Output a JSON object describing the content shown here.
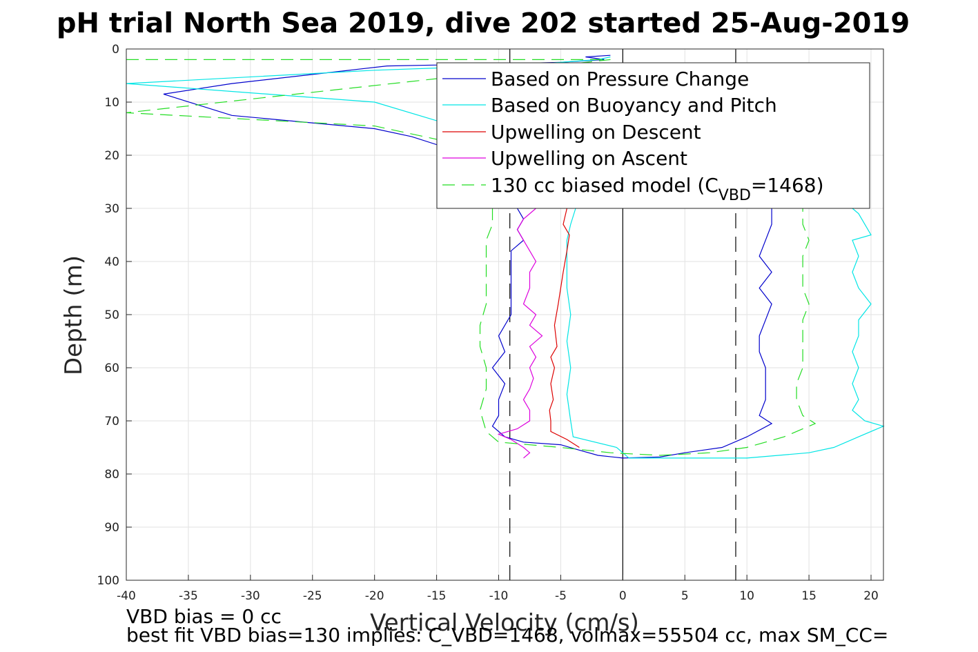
{
  "chart_data": {
    "type": "line",
    "title": "pH trial North Sea 2019, dive 202 started 25-Aug-2019",
    "xlabel": "Vertical Velocity (cm/s)",
    "ylabel": "Depth (m)",
    "xlim": [
      -40,
      21
    ],
    "ylim": [
      0,
      100
    ],
    "y_reversed": true,
    "grid": true,
    "xticks": [
      -40,
      -35,
      -30,
      -25,
      -20,
      -15,
      -10,
      -5,
      0,
      5,
      10,
      15,
      20
    ],
    "yticks": [
      0,
      10,
      20,
      30,
      40,
      50,
      60,
      70,
      80,
      90,
      100
    ],
    "vertical_lines": [
      {
        "x": -9.1,
        "style": "dashed",
        "color": "#000000"
      },
      {
        "x": 0,
        "style": "solid",
        "color": "#000000"
      },
      {
        "x": 9.1,
        "style": "dashed",
        "color": "#000000"
      }
    ],
    "legend_position": "top-right",
    "legend": [
      {
        "label": "Based on Pressure Change",
        "color": "#0000cc",
        "dash": "solid",
        "series": "pressure"
      },
      {
        "label": "Based on Buoyancy and Pitch",
        "color": "#00e5e5",
        "dash": "solid",
        "series": "buoyancy"
      },
      {
        "label": "Upwelling on Descent",
        "color": "#dd0000",
        "dash": "solid",
        "series": "upwell_desc"
      },
      {
        "label": "Upwelling on Ascent",
        "color": "#dd00dd",
        "dash": "solid",
        "series": "upwell_asc"
      },
      {
        "label_prefix": "130 cc biased model (C",
        "label_sub": "VBD",
        "label_suffix": "=1468)",
        "color": "#22dd22",
        "dash": "dashed",
        "series": "model"
      }
    ],
    "series": [
      {
        "key": "pressure",
        "color": "#0000cc",
        "dash": "solid",
        "points": [
          [
            -1,
            1.2
          ],
          [
            -3,
            1.5
          ],
          [
            -1.5,
            2
          ],
          [
            -5,
            2.5
          ],
          [
            -10,
            2.8
          ],
          [
            -19,
            3.2
          ],
          [
            -31.5,
            6.5
          ],
          [
            -37,
            8.5
          ],
          [
            -31.5,
            12.5
          ],
          [
            -20,
            15
          ],
          [
            -17,
            16.5
          ],
          [
            -15,
            18
          ],
          [
            -14,
            20
          ],
          [
            -11,
            24
          ],
          [
            -9.5,
            27
          ],
          [
            -8.5,
            30
          ],
          [
            -8,
            32
          ],
          [
            -8.5,
            34
          ],
          [
            -8,
            36
          ],
          [
            -9,
            38
          ],
          [
            -9,
            42
          ],
          [
            -9,
            46
          ],
          [
            -9,
            50
          ],
          [
            -10,
            54
          ],
          [
            -9.5,
            57
          ],
          [
            -10.5,
            60
          ],
          [
            -9.5,
            63
          ],
          [
            -10,
            66
          ],
          [
            -10,
            69
          ],
          [
            -10.5,
            71
          ],
          [
            -9.5,
            73
          ],
          [
            -8,
            74
          ],
          [
            -5,
            74.5
          ],
          [
            -3.5,
            75.5
          ],
          [
            -2,
            76.5
          ],
          [
            0,
            77
          ],
          [
            3,
            76.8
          ],
          [
            5,
            76
          ],
          [
            8,
            75
          ],
          [
            10,
            73
          ],
          [
            12,
            70.5
          ],
          [
            11,
            69
          ],
          [
            11.5,
            66
          ],
          [
            11.5,
            63
          ],
          [
            11.5,
            60
          ],
          [
            11,
            57
          ],
          [
            11,
            54
          ],
          [
            11.5,
            51
          ],
          [
            12,
            48
          ],
          [
            11,
            45
          ],
          [
            12,
            42
          ],
          [
            11,
            39
          ],
          [
            11.5,
            36
          ],
          [
            12,
            33
          ],
          [
            12,
            30
          ]
        ]
      },
      {
        "key": "buoyancy",
        "color": "#00e5e5",
        "dash": "solid",
        "points": [
          [
            -1,
            1.5
          ],
          [
            -2,
            2
          ],
          [
            -8,
            3
          ],
          [
            -20,
            4
          ],
          [
            -40,
            6.5
          ],
          [
            -20,
            10
          ],
          [
            -15,
            13.5
          ],
          [
            -8,
            18
          ],
          [
            -4,
            22
          ],
          [
            -3.5,
            26
          ],
          [
            -3.8,
            30
          ],
          [
            -4.2,
            33
          ],
          [
            -4.5,
            36
          ],
          [
            -4.5,
            40
          ],
          [
            -4.5,
            45
          ],
          [
            -4.2,
            50
          ],
          [
            -4.5,
            55
          ],
          [
            -4.2,
            60
          ],
          [
            -4.5,
            65
          ],
          [
            -4.2,
            70
          ],
          [
            -4,
            73
          ],
          [
            -0.5,
            75
          ],
          [
            0.5,
            77
          ],
          [
            10,
            77
          ],
          [
            15,
            76
          ],
          [
            17,
            75
          ],
          [
            19,
            73
          ],
          [
            21,
            71
          ],
          [
            19.5,
            70
          ],
          [
            18.5,
            68
          ],
          [
            19,
            66
          ],
          [
            18.5,
            63
          ],
          [
            19,
            60
          ],
          [
            18.5,
            57
          ],
          [
            19,
            54
          ],
          [
            19,
            51
          ],
          [
            20,
            48
          ],
          [
            19,
            45
          ],
          [
            18.5,
            42
          ],
          [
            19,
            39
          ],
          [
            18.5,
            36
          ],
          [
            20,
            35
          ],
          [
            19.5,
            33
          ],
          [
            19,
            31
          ],
          [
            18.5,
            30
          ]
        ]
      },
      {
        "key": "upwell_desc",
        "color": "#dd0000",
        "dash": "solid",
        "points": [
          [
            -4.5,
            30
          ],
          [
            -4.8,
            33
          ],
          [
            -4.3,
            35
          ],
          [
            -4.5,
            38
          ],
          [
            -4.8,
            42
          ],
          [
            -5,
            45
          ],
          [
            -5.2,
            48
          ],
          [
            -5.5,
            52
          ],
          [
            -5.3,
            56
          ],
          [
            -5.8,
            58
          ],
          [
            -5.5,
            60
          ],
          [
            -5.8,
            63
          ],
          [
            -5.6,
            66
          ],
          [
            -5.9,
            68
          ],
          [
            -5.8,
            70
          ],
          [
            -5.8,
            72
          ],
          [
            -4.5,
            73.5
          ],
          [
            -3.5,
            75
          ]
        ]
      },
      {
        "key": "upwell_asc",
        "color": "#dd00dd",
        "dash": "solid",
        "points": [
          [
            -7,
            30
          ],
          [
            -8,
            32
          ],
          [
            -8.5,
            34
          ],
          [
            -8,
            36
          ],
          [
            -7.5,
            38
          ],
          [
            -7,
            40
          ],
          [
            -7.5,
            42
          ],
          [
            -7.5,
            45
          ],
          [
            -8,
            48
          ],
          [
            -7,
            50
          ],
          [
            -7.5,
            52
          ],
          [
            -6.5,
            54
          ],
          [
            -7.5,
            56
          ],
          [
            -7,
            58
          ],
          [
            -7.5,
            60
          ],
          [
            -7.2,
            62
          ],
          [
            -7.5,
            64
          ],
          [
            -8,
            66
          ],
          [
            -7.5,
            68
          ],
          [
            -7.5,
            70
          ],
          [
            -8.5,
            71.5
          ],
          [
            -10,
            72.5
          ],
          [
            -9,
            73.5
          ],
          [
            -8,
            75
          ],
          [
            -7.5,
            76
          ],
          [
            -8,
            77
          ]
        ]
      },
      {
        "key": "model",
        "color": "#22dd22",
        "dash": "dashed",
        "points": [
          [
            -40,
            2
          ],
          [
            -1,
            2
          ],
          [
            -40,
            12
          ],
          [
            -20,
            14.5
          ],
          [
            -15,
            17
          ],
          [
            -12,
            24
          ],
          [
            -11,
            28
          ],
          [
            -10.5,
            30
          ],
          [
            -10.5,
            33
          ],
          [
            -11,
            36
          ],
          [
            -11,
            40
          ],
          [
            -11,
            44
          ],
          [
            -11,
            48
          ],
          [
            -11.5,
            52
          ],
          [
            -11.5,
            56
          ],
          [
            -11,
            60
          ],
          [
            -11,
            64
          ],
          [
            -11.5,
            68
          ],
          [
            -11,
            72
          ],
          [
            -10,
            74
          ],
          [
            -5,
            75
          ],
          [
            -1,
            76
          ],
          [
            3,
            76.5
          ],
          [
            7,
            76
          ],
          [
            10,
            75
          ],
          [
            13,
            73
          ],
          [
            15.5,
            70.5
          ],
          [
            14.5,
            69
          ],
          [
            14,
            66
          ],
          [
            14,
            63
          ],
          [
            14.5,
            60
          ],
          [
            14.5,
            57
          ],
          [
            14.5,
            54
          ],
          [
            14.5,
            51
          ],
          [
            15,
            48
          ],
          [
            14.5,
            45
          ],
          [
            14.5,
            42
          ],
          [
            14.5,
            39
          ],
          [
            15,
            36
          ],
          [
            14.5,
            33
          ],
          [
            14.5,
            30
          ]
        ]
      }
    ],
    "annotations": [
      "VBD bias = 0 cc",
      "best fit VBD bias=130 implies: C_VBD=1468, volmax=55504 cc, max SM_CC="
    ]
  }
}
